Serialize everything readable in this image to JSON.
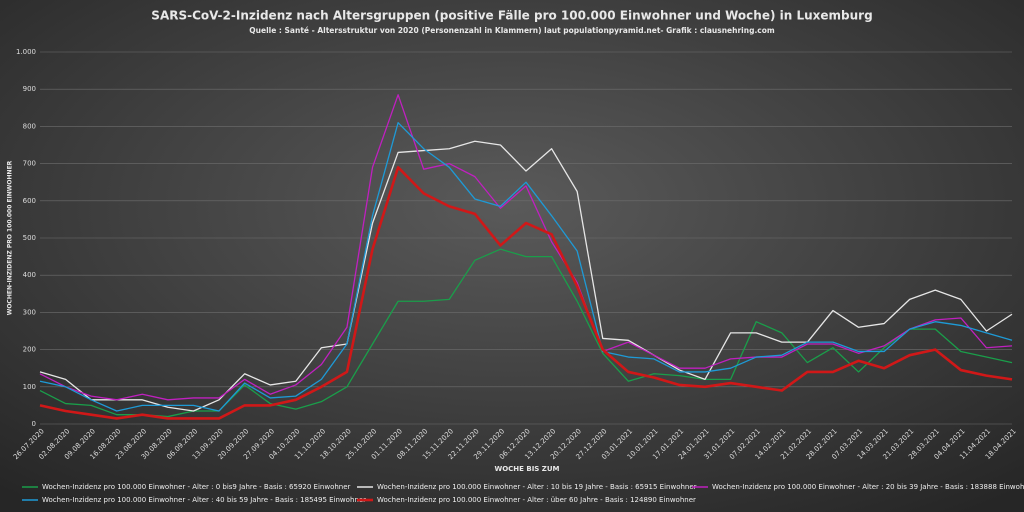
{
  "chart_data": {
    "type": "line",
    "title": "SARS-CoV-2-Inzidenz nach Altersgruppen (positive Fälle pro 100.000 Einwohner und Woche) in Luxemburg",
    "subtitle": "Quelle : Santé - Altersstruktur von 2020 (Personenzahl in Klammern) laut populationpyramid.net- Grafik : clausnehring.com",
    "x_label": "WOCHE BIS ZUM",
    "y_label": "WOCHEN-INZIDENZ PRO 100.000 EINWOHNER",
    "categories": [
      "26.07.2020",
      "02.08.2020",
      "09.08.2020",
      "16.08.2020",
      "23.08.2020",
      "30.08.2020",
      "06.09.2020",
      "13.09.2020",
      "20.09.2020",
      "27.09.2020",
      "04.10.2020",
      "11.10.2020",
      "18.10.2020",
      "25.10.2020",
      "01.11.2020",
      "08.11.2020",
      "15.11.2020",
      "22.11.2020",
      "29.11.2020",
      "06.12.2020",
      "13.12.2020",
      "20.12.2020",
      "27.12.2020",
      "03.01.2021",
      "10.01.2021",
      "17.01.2021",
      "24.01.2021",
      "31.01.2021",
      "07.02.2021",
      "14.02.2021",
      "21.02.2021",
      "28.02.2021",
      "07.03.2021",
      "14.03.2021",
      "21.03.2021",
      "28.03.2021",
      "04.04.2021",
      "11.04.2021",
      "18.04.2021"
    ],
    "series": [
      {
        "name": "Wochen-Inzidenz pro 100.000 Einwohner - Alter : 0 bis9 Jahre - Basis : 65920 Einwohner",
        "color": "#1a9e4a",
        "values": [
          90,
          55,
          50,
          25,
          25,
          20,
          35,
          35,
          105,
          55,
          40,
          60,
          100,
          215,
          330,
          330,
          335,
          440,
          470,
          450,
          450,
          330,
          190,
          115,
          135,
          130,
          120,
          120,
          275,
          245,
          165,
          205,
          140,
          205,
          255,
          255,
          195,
          180,
          165
        ]
      },
      {
        "name": "Wochen-Inzidenz pro 100.000 Einwohner - Alter : 10 bis 19 Jahre - Basis : 65915 Einwohner",
        "color": "#e6e6e6",
        "values": [
          140,
          120,
          65,
          65,
          65,
          45,
          35,
          65,
          135,
          105,
          115,
          205,
          215,
          540,
          730,
          735,
          740,
          760,
          750,
          680,
          740,
          625,
          230,
          225,
          185,
          145,
          120,
          245,
          245,
          220,
          220,
          305,
          260,
          270,
          335,
          360,
          335,
          250,
          295
        ]
      },
      {
        "name": "Wochen-Inzidenz pro 100.000 Einwohner - Alter : 20 bis 39 Jahre - Basis : 183888 Einwohner",
        "color": "#c020c0",
        "values": [
          135,
          100,
          75,
          65,
          80,
          65,
          70,
          70,
          120,
          80,
          105,
          160,
          260,
          690,
          885,
          685,
          700,
          665,
          580,
          640,
          490,
          380,
          195,
          220,
          185,
          150,
          150,
          175,
          180,
          180,
          215,
          215,
          190,
          210,
          255,
          280,
          285,
          205,
          210
        ]
      },
      {
        "name": "Wochen-Inzidenz pro 100.000 Einwohner - Alter : 40 bis 59 Jahre - Basis : 185495 Einwohner",
        "color": "#1e9ad6",
        "values": [
          115,
          100,
          65,
          35,
          50,
          50,
          50,
          35,
          110,
          70,
          75,
          120,
          215,
          560,
          810,
          740,
          690,
          605,
          585,
          650,
          560,
          465,
          195,
          180,
          175,
          140,
          140,
          150,
          180,
          185,
          220,
          220,
          195,
          195,
          255,
          275,
          265,
          245,
          225
        ]
      },
      {
        "name": "Wochen-Inzidenz pro 100.000 Einwohner - Alter : über 60 Jahre - Basis : 124890 Einwohner",
        "color": "#d01818",
        "values": [
          50,
          35,
          25,
          15,
          25,
          15,
          15,
          15,
          50,
          50,
          65,
          100,
          140,
          470,
          690,
          620,
          585,
          565,
          480,
          540,
          510,
          370,
          200,
          140,
          125,
          105,
          100,
          110,
          100,
          90,
          140,
          140,
          170,
          150,
          185,
          200,
          145,
          130,
          120
        ]
      }
    ],
    "ylim": [
      0,
      1000
    ],
    "yticks": [
      0,
      100,
      200,
      300,
      400,
      500,
      600,
      700,
      800,
      900,
      {
        "value": 1000,
        "label": "1.000"
      }
    ],
    "grid": true
  }
}
